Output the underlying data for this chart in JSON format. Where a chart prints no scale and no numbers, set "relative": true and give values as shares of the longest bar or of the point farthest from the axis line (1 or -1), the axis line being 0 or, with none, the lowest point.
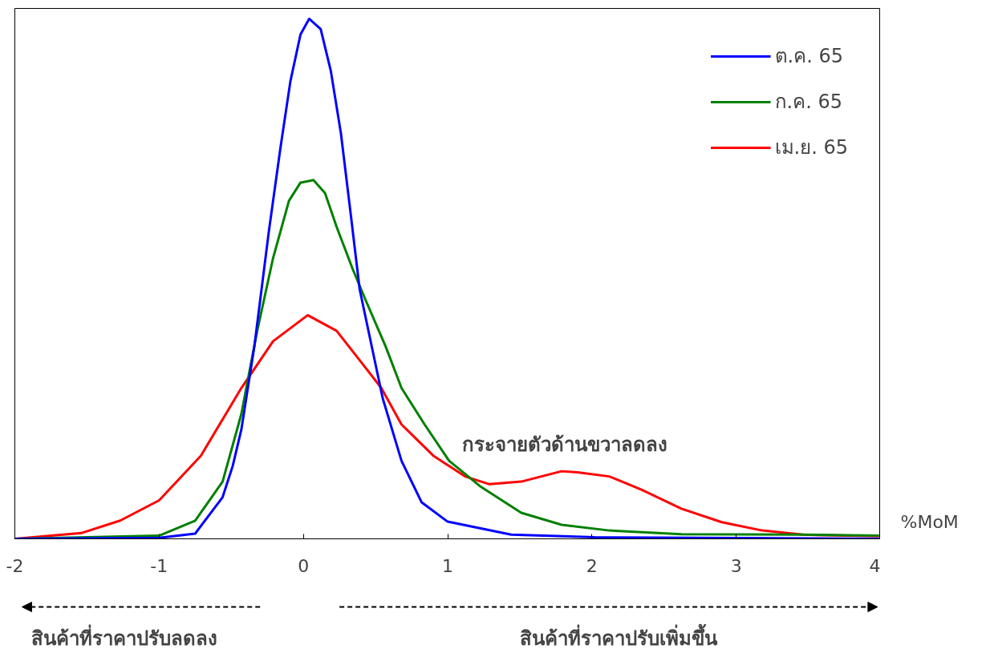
{
  "chart_data": {
    "type": "line",
    "relative": true,
    "xlabel": "%MoM",
    "xlim": [
      -2,
      4
    ],
    "xticks": [
      -2,
      -1,
      0,
      1,
      2,
      3,
      4
    ],
    "grid": false,
    "legend": "top right",
    "marker": "none",
    "line_style": "solid",
    "annotations": [
      "กระจายตัวด้านขวาลดลง",
      "สินค้าที่ราคาปรับลดลง",
      "สินค้าที่ราคาปรับเพิ่มขึ้น"
    ],
    "series": [
      {
        "name": "ต.ค. 65",
        "color": "#0000ff",
        "x": [
          -2,
          -1,
          -0.75,
          -0.56,
          -0.49,
          -0.43,
          -0.34,
          -0.24,
          -0.16,
          -0.09,
          -0.02,
          0.04,
          0.12,
          0.19,
          0.26,
          0.33,
          0.39,
          0.55,
          0.68,
          0.82,
          1.0,
          1.44,
          2.02,
          3.99
        ],
        "values": [
          0,
          0.002,
          0.01,
          0.08,
          0.14,
          0.21,
          0.37,
          0.59,
          0.75,
          0.88,
          0.97,
          1,
          0.98,
          0.9,
          0.78,
          0.62,
          0.48,
          0.27,
          0.15,
          0.07,
          0.033,
          0.008,
          0.003,
          0
        ]
      },
      {
        "name": "ก.ค. 65",
        "color": "#008000",
        "x": [
          -2,
          -1,
          -0.75,
          -0.56,
          -0.43,
          -0.32,
          -0.21,
          -0.1,
          -0.02,
          0.07,
          0.15,
          0.23,
          0.34,
          0.43,
          0.57,
          0.68,
          0.84,
          1.01,
          1.23,
          1.51,
          1.79,
          2.12,
          2.62,
          3.46,
          3.99
        ],
        "values": [
          0,
          0.006,
          0.035,
          0.11,
          0.24,
          0.4,
          0.54,
          0.65,
          0.685,
          0.69,
          0.665,
          0.6,
          0.52,
          0.46,
          0.37,
          0.29,
          0.22,
          0.15,
          0.1,
          0.05,
          0.027,
          0.016,
          0.009,
          0.008,
          0.006
        ]
      },
      {
        "name": "เม.ย. 65",
        "color": "#ff0000",
        "x": [
          -2,
          -1.54,
          -1.27,
          -1,
          -0.71,
          -0.43,
          -0.21,
          0.03,
          0.23,
          0.4,
          0.54,
          0.68,
          0.9,
          1.12,
          1.29,
          1.51,
          1.79,
          1.9,
          2.12,
          2.34,
          2.62,
          2.9,
          3.18,
          3.46,
          3.99
        ],
        "values": [
          0,
          0.011,
          0.035,
          0.074,
          0.16,
          0.29,
          0.38,
          0.43,
          0.4,
          0.34,
          0.29,
          0.22,
          0.16,
          0.12,
          0.105,
          0.11,
          0.13,
          0.128,
          0.12,
          0.095,
          0.058,
          0.032,
          0.016,
          0.008,
          0.005
        ]
      }
    ]
  }
}
